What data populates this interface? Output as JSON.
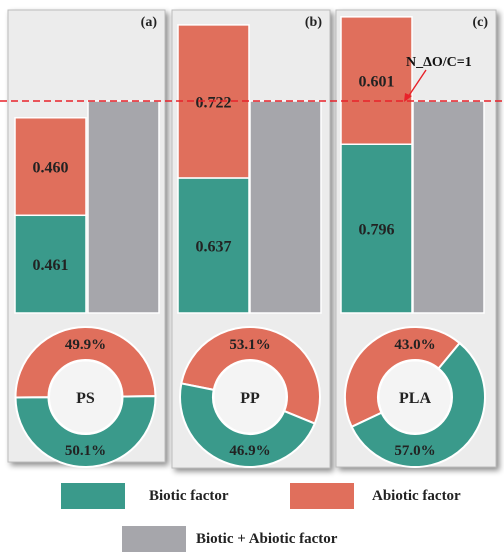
{
  "chart_data": [
    {
      "type": "bar",
      "panel_label": "(a)",
      "polymer": "PS",
      "bars": [
        {
          "segments": [
            {
              "factor": "Biotic factor",
              "value": 0.461
            },
            {
              "factor": "Abiotic factor",
              "value": 0.46
            }
          ]
        },
        {
          "segments": [
            {
              "factor": "Biotic + Abiotic factor",
              "value": 1.0
            }
          ]
        }
      ],
      "donut": {
        "type": "pie",
        "slices": [
          {
            "factor": "Abiotic factor",
            "percent": 49.9,
            "label": "49.9%"
          },
          {
            "factor": "Biotic factor",
            "percent": 50.1,
            "label": "50.1%"
          }
        ]
      }
    },
    {
      "type": "bar",
      "panel_label": "(b)",
      "polymer": "PP",
      "bars": [
        {
          "segments": [
            {
              "factor": "Biotic factor",
              "value": 0.637
            },
            {
              "factor": "Abiotic factor",
              "value": 0.722
            }
          ]
        },
        {
          "segments": [
            {
              "factor": "Biotic + Abiotic factor",
              "value": 1.0
            }
          ]
        }
      ],
      "donut": {
        "type": "pie",
        "slices": [
          {
            "factor": "Abiotic factor",
            "percent": 53.1,
            "label": "53.1%"
          },
          {
            "factor": "Biotic factor",
            "percent": 46.9,
            "label": "46.9%"
          }
        ]
      }
    },
    {
      "type": "bar",
      "panel_label": "(c)",
      "polymer": "PLA",
      "bars": [
        {
          "segments": [
            {
              "factor": "Biotic factor",
              "value": 0.796
            },
            {
              "factor": "Abiotic factor",
              "value": 0.601
            }
          ]
        },
        {
          "segments": [
            {
              "factor": "Biotic + Abiotic factor",
              "value": 1.0
            }
          ]
        }
      ],
      "donut": {
        "type": "pie",
        "slices": [
          {
            "factor": "Abiotic factor",
            "percent": 43.0,
            "label": "43.0%"
          },
          {
            "factor": "Biotic factor",
            "percent": 57.0,
            "label": "57.0%"
          }
        ]
      }
    }
  ],
  "reference_line": {
    "value": 1.0,
    "label": "N_ΔO/C=1",
    "style": "dashed",
    "color": "#e8222a"
  },
  "legend": [
    {
      "label": "Biotic factor",
      "color": "#3a9a8b"
    },
    {
      "label": "Abiotic factor",
      "color": "#e06f5c"
    },
    {
      "label": "Biotic + Abiotic factor",
      "color": "#a6a6ab"
    }
  ],
  "colors": {
    "biotic": "#3a9a8b",
    "abiotic": "#e06f5c",
    "combined": "#a6a6ab",
    "panel_bg": "#ececec"
  }
}
